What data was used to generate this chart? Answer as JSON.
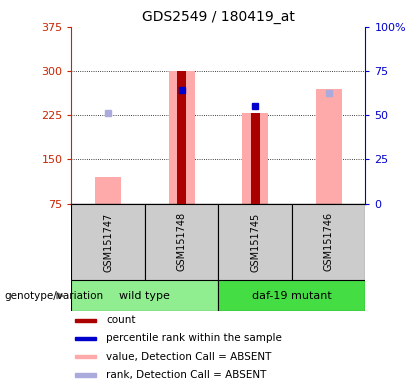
{
  "title": "GDS2549 / 180419_at",
  "samples": [
    "GSM151747",
    "GSM151748",
    "GSM151745",
    "GSM151746"
  ],
  "groups": [
    {
      "label": "wild type",
      "color": "#90ee90",
      "samples": [
        0,
        1
      ]
    },
    {
      "label": "daf-19 mutant",
      "color": "#44dd44",
      "samples": [
        2,
        3
      ]
    }
  ],
  "ylim_left": [
    75,
    375
  ],
  "ylim_right": [
    0,
    100
  ],
  "yticks_left": [
    75,
    150,
    225,
    300,
    375
  ],
  "yticks_right": [
    0,
    25,
    50,
    75,
    100
  ],
  "ytick_labels_right": [
    "0",
    "25",
    "50",
    "75",
    "100%"
  ],
  "left_axis_color": "#cc2200",
  "right_axis_color": "#0000cc",
  "bars_pink": [
    120,
    300,
    228,
    270
  ],
  "bars_red": [
    null,
    300,
    228,
    null
  ],
  "dots_blue": [
    null,
    268,
    240,
    null
  ],
  "dots_lightblue": [
    228,
    null,
    null,
    262
  ],
  "pink_color": "#ffaaaa",
  "red_color": "#aa0000",
  "blue_color": "#0000cc",
  "lightblue_color": "#aaaadd",
  "legend_items": [
    {
      "color": "#aa0000",
      "label": "count"
    },
    {
      "color": "#0000cc",
      "label": "percentile rank within the sample"
    },
    {
      "color": "#ffaaaa",
      "label": "value, Detection Call = ABSENT"
    },
    {
      "color": "#aaaadd",
      "label": "rank, Detection Call = ABSENT"
    }
  ],
  "xlabel_annotation": "genotype/variation",
  "sample_bg_color": "#cccccc",
  "pink_bar_width": 0.35,
  "red_bar_width": 0.12
}
